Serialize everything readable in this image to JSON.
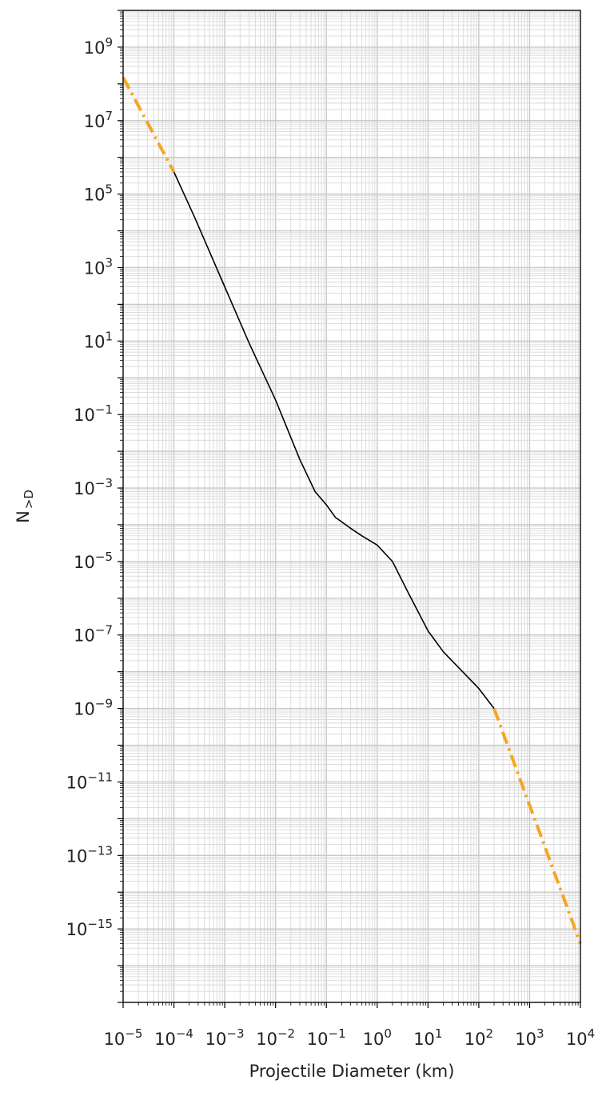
{
  "chart_data": {
    "type": "line",
    "title": "",
    "xlabel": "Projectile Diameter (km)",
    "ylabel_main": "N",
    "ylabel_sub": ">D",
    "xscale": "log",
    "yscale": "log",
    "xlim": [
      1e-05,
      10000
    ],
    "ylim": [
      1e-17,
      10000000000.0
    ],
    "grid": true,
    "legend": "none",
    "x_tick_labels": [
      {
        "base": "10",
        "exp": "−5",
        "value": 1e-05
      },
      {
        "base": "10",
        "exp": "−4",
        "value": 0.0001
      },
      {
        "base": "10",
        "exp": "−3",
        "value": 0.001
      },
      {
        "base": "10",
        "exp": "−2",
        "value": 0.01
      },
      {
        "base": "10",
        "exp": "−1",
        "value": 0.1
      },
      {
        "base": "10",
        "exp": "0",
        "value": 1
      },
      {
        "base": "10",
        "exp": "1",
        "value": 10
      },
      {
        "base": "10",
        "exp": "2",
        "value": 100
      },
      {
        "base": "10",
        "exp": "3",
        "value": 1000
      },
      {
        "base": "10",
        "exp": "4",
        "value": 10000
      }
    ],
    "y_tick_labels": [
      {
        "base": "10",
        "exp": "9",
        "value": 1000000000.0
      },
      {
        "base": "10",
        "exp": "7",
        "value": 10000000.0
      },
      {
        "base": "10",
        "exp": "5",
        "value": 100000
      },
      {
        "base": "10",
        "exp": "3",
        "value": 1000
      },
      {
        "base": "10",
        "exp": "1",
        "value": 10
      },
      {
        "base": "10",
        "exp": "−1",
        "value": 0.1
      },
      {
        "base": "10",
        "exp": "−3",
        "value": 0.001
      },
      {
        "base": "10",
        "exp": "−5",
        "value": 1e-05
      },
      {
        "base": "10",
        "exp": "−7",
        "value": 1e-07
      },
      {
        "base": "10",
        "exp": "−9",
        "value": 1e-09
      },
      {
        "base": "10",
        "exp": "−11",
        "value": 1e-11
      },
      {
        "base": "10",
        "exp": "−13",
        "value": 1e-13
      },
      {
        "base": "10",
        "exp": "−15",
        "value": 1e-15
      }
    ],
    "series": [
      {
        "role": "extrapolation-small",
        "color": "#f5a623",
        "style": "dashdot",
        "x": [
          1e-05,
          0.0001
        ],
        "y": [
          150000000,
          400000
        ]
      },
      {
        "role": "measured",
        "color": "#000000",
        "style": "solid",
        "x": [
          0.0001,
          0.00025,
          0.001,
          0.003,
          0.01,
          0.03,
          0.06,
          0.1,
          0.15,
          0.3,
          0.5,
          1,
          2,
          4,
          10,
          20,
          40,
          100,
          200
        ],
        "y": [
          400000,
          25000,
          300,
          9,
          0.25,
          0.006,
          0.0008,
          0.00035,
          0.00016,
          8e-05,
          5e-05,
          2.8e-05,
          1e-05,
          1.5e-06,
          1.3e-07,
          3.5e-08,
          1.3e-08,
          3.5e-09,
          1e-09
        ]
      },
      {
        "role": "extrapolation-large",
        "color": "#f5a623",
        "style": "dashdot",
        "x": [
          200,
          10000
        ],
        "y": [
          1e-09,
          4e-16
        ]
      }
    ]
  }
}
